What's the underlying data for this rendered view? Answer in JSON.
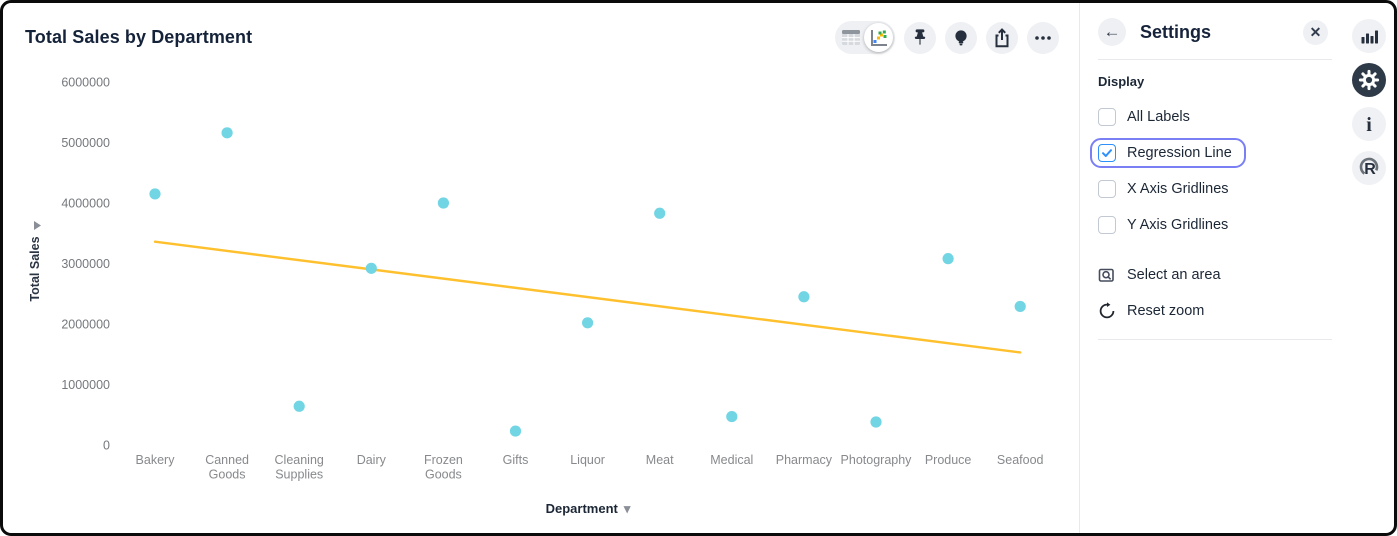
{
  "chart_data": {
    "type": "scatter",
    "title": "Total Sales by Department",
    "xlabel": "Department",
    "ylabel": "Total Sales",
    "categories": [
      "Bakery",
      "Canned Goods",
      "Cleaning Supplies",
      "Dairy",
      "Frozen Goods",
      "Gifts",
      "Liquor",
      "Meat",
      "Medical",
      "Pharmacy",
      "Photography",
      "Produce",
      "Seafood"
    ],
    "values": [
      4150000,
      5160000,
      640000,
      2920000,
      4000000,
      230000,
      2020000,
      3830000,
      470000,
      2450000,
      380000,
      3080000,
      2290000
    ],
    "ylim": [
      0,
      6000000
    ],
    "yticks": [
      0,
      1000000,
      2000000,
      3000000,
      4000000,
      5000000,
      6000000
    ],
    "grid": false,
    "legend": "none",
    "point_color": "#72D5E4",
    "regression_line": {
      "show": true,
      "start_value": 3360000,
      "end_value": 1530000,
      "color": "#FFC02E"
    }
  },
  "toolbar": {
    "view_toggle": {
      "options": [
        "table-view",
        "chart-view"
      ],
      "selected": "chart-view"
    },
    "buttons": [
      {
        "name": "pin-button",
        "icon": "pin-icon"
      },
      {
        "name": "insights-button",
        "icon": "lightbulb-icon"
      },
      {
        "name": "export-button",
        "icon": "share-icon"
      },
      {
        "name": "more-button",
        "icon": "ellipsis-icon"
      }
    ]
  },
  "settings_panel": {
    "title": "Settings",
    "back_icon": "arrow-left-icon",
    "close_icon": "close-icon",
    "section_label": "Display",
    "checkboxes": [
      {
        "label": "All Labels",
        "checked": false,
        "focused": false
      },
      {
        "label": "Regression Line",
        "checked": true,
        "focused": true
      },
      {
        "label": "X Axis Gridlines",
        "checked": false,
        "focused": false
      },
      {
        "label": "Y Axis Gridlines",
        "checked": false,
        "focused": false
      }
    ],
    "actions": [
      {
        "label": "Select an area",
        "icon": "select-area-icon"
      },
      {
        "label": "Reset zoom",
        "icon": "reset-zoom-icon"
      }
    ]
  },
  "right_rail": {
    "items": [
      {
        "icon": "bar-chart-icon",
        "active": false
      },
      {
        "icon": "gear-icon",
        "active": true
      },
      {
        "icon": "info-icon",
        "active": false
      },
      {
        "icon": "r-logo-icon",
        "active": false
      }
    ]
  },
  "colors": {
    "title_text": "#15233A",
    "tick_text": "#75787D",
    "point": "#72D5E4",
    "regression": "#FFC02E",
    "focus_ring": "#7B7FF4",
    "checkbox_checked": "#2E90FA",
    "active_icon_bg": "#2E3A48"
  }
}
